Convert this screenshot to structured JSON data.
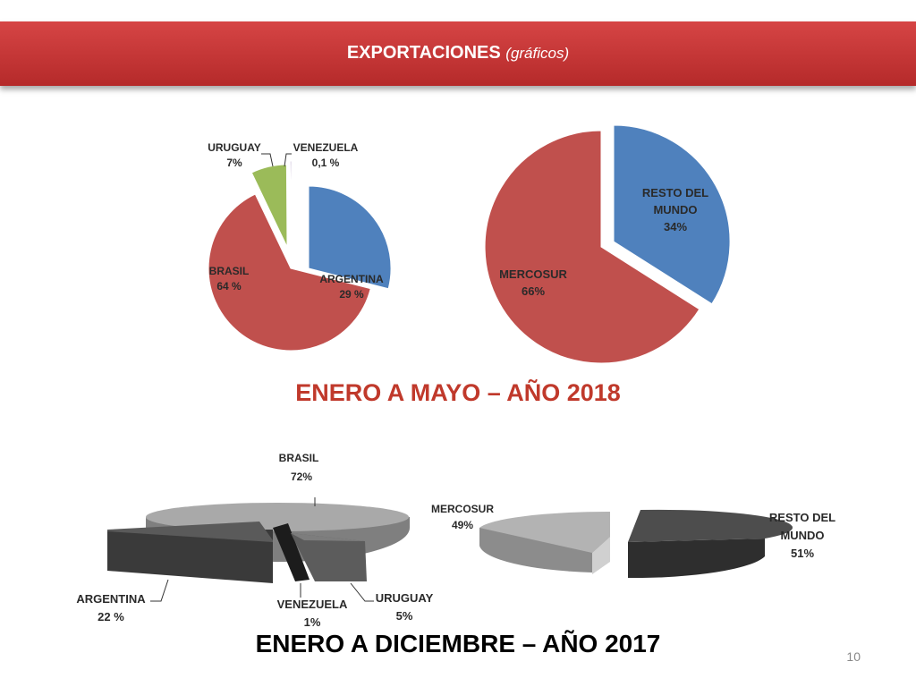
{
  "header": {
    "title_main": "EXPORTACIONES",
    "title_sub": "(gráficos)"
  },
  "page_number": "10",
  "colors": {
    "header_red": "#c83434",
    "argentina_blue": "#4f81bd",
    "brasil_red": "#c0504d",
    "uruguay_green": "#9bbb59",
    "venezuela_purple": "#8064a2",
    "gray_dark": "#4a4a4a",
    "gray_light": "#a6a6a6"
  },
  "chart_data": [
    {
      "type": "pie",
      "title": "ENERO A MAYO – AÑO 2018",
      "slices": [
        {
          "name": "ARGENTINA",
          "label": "29 %",
          "value": 29
        },
        {
          "name": "BRASIL",
          "label": "64 %",
          "value": 64
        },
        {
          "name": "URUGUAY",
          "label": "7%",
          "value": 7
        },
        {
          "name": "VENEZUELA",
          "label": "0,1 %",
          "value": 0.1
        }
      ]
    },
    {
      "type": "pie",
      "title": "ENERO A MAYO – AÑO 2018",
      "slices": [
        {
          "name": "RESTO DEL MUNDO",
          "label": "34%",
          "value": 34
        },
        {
          "name": "MERCOSUR",
          "label": "66%",
          "value": 66
        }
      ]
    },
    {
      "type": "pie",
      "title": "ENERO A DICIEMBRE – AÑO 2017",
      "slices": [
        {
          "name": "BRASIL",
          "label": "72%",
          "value": 72
        },
        {
          "name": "ARGENTINA",
          "label": "22 %",
          "value": 22
        },
        {
          "name": "VENEZUELA",
          "label": "1%",
          "value": 1
        },
        {
          "name": "URUGUAY",
          "label": "5%",
          "value": 5
        }
      ]
    },
    {
      "type": "pie",
      "title": "ENERO A DICIEMBRE – AÑO 2017",
      "slices": [
        {
          "name": "MERCOSUR",
          "label": "49%",
          "value": 49
        },
        {
          "name": "RESTO DEL MUNDO",
          "label": "51%",
          "value": 51
        }
      ]
    }
  ]
}
